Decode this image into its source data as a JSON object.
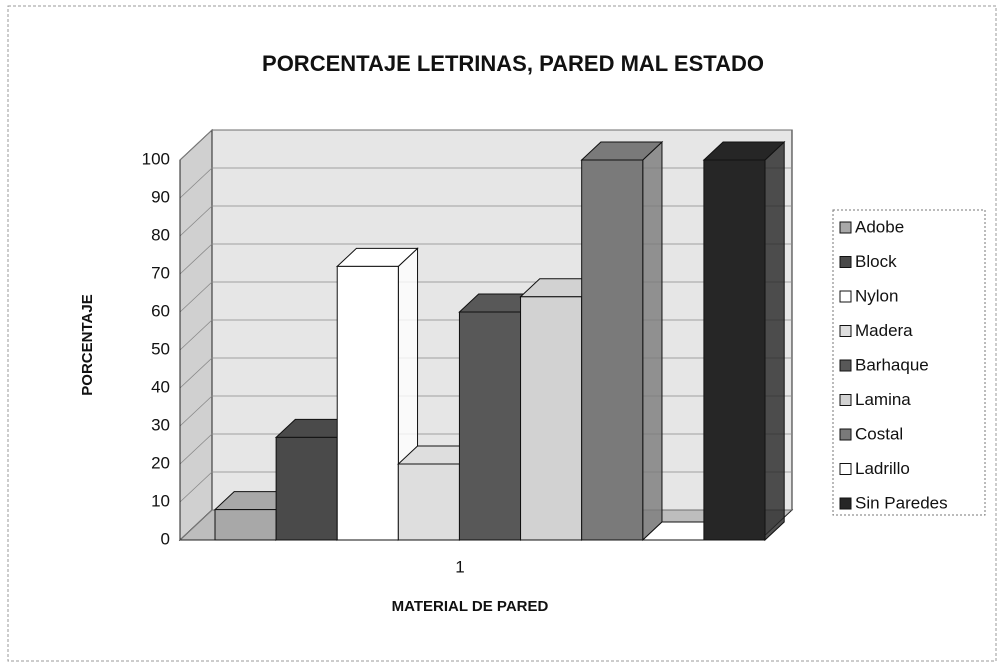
{
  "chart_data": {
    "type": "bar3d",
    "title": "PORCENTAJE LETRINAS, PARED MAL ESTADO",
    "xlabel": "MATERIAL DE PARED",
    "ylabel": "PORCENTAJE",
    "categories": [
      "1"
    ],
    "series": [
      {
        "name": "Adobe",
        "color": "#a8a8a8",
        "values": [
          8
        ]
      },
      {
        "name": "Block",
        "color": "#4a4a4a",
        "values": [
          27
        ]
      },
      {
        "name": "Nylon",
        "color": "#ffffff",
        "values": [
          72
        ]
      },
      {
        "name": "Madera",
        "color": "#dedede",
        "values": [
          20
        ]
      },
      {
        "name": "Barhaque",
        "color": "#585858",
        "values": [
          60
        ]
      },
      {
        "name": "Lamina",
        "color": "#d2d2d2",
        "values": [
          64
        ]
      },
      {
        "name": "Costal",
        "color": "#7a7a7a",
        "values": [
          100
        ]
      },
      {
        "name": "Ladrillo",
        "color": "#ffffff",
        "values": [
          0
        ]
      },
      {
        "name": "Sin Paredes",
        "color": "#262626",
        "values": [
          100
        ]
      }
    ],
    "ylim": [
      0,
      100
    ],
    "yticks": [
      0,
      10,
      20,
      30,
      40,
      50,
      60,
      70,
      80,
      90,
      100
    ],
    "grid": true
  }
}
